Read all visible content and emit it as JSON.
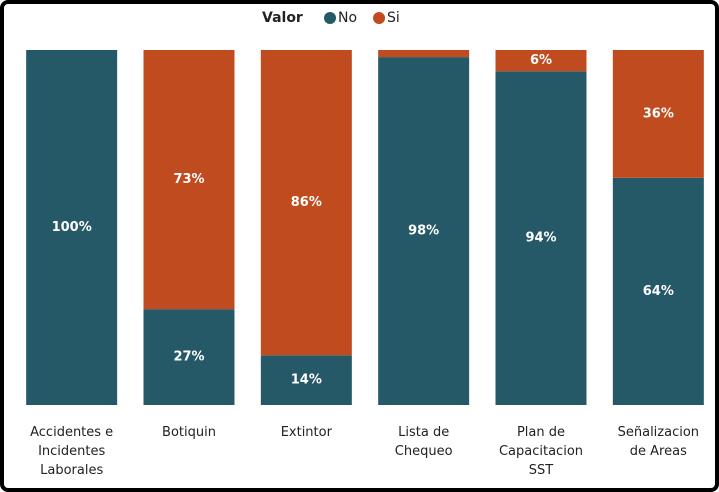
{
  "chart_data": {
    "type": "stacked_bar",
    "legend_title": "Valor",
    "categories": [
      "Accidentes e Incidentes Laborales",
      "Botiquin",
      "Extintor",
      "Lista de Chequeo",
      "Plan de Capacitacion SST",
      "Señalizacion de Areas"
    ],
    "series": [
      {
        "name": "No",
        "color": "#255968",
        "values": [
          100,
          27,
          14,
          98,
          94,
          64
        ],
        "value_labels": [
          "100%",
          "27%",
          "14%",
          "98%",
          "94%",
          "64%"
        ]
      },
      {
        "name": "Si",
        "color": "#c04b1f",
        "values": [
          0,
          73,
          86,
          2,
          6,
          36
        ],
        "value_labels": [
          null,
          "73%",
          "86%",
          null,
          "6%",
          "36%"
        ]
      }
    ],
    "ylim": [
      0,
      100
    ],
    "legend": "top"
  }
}
